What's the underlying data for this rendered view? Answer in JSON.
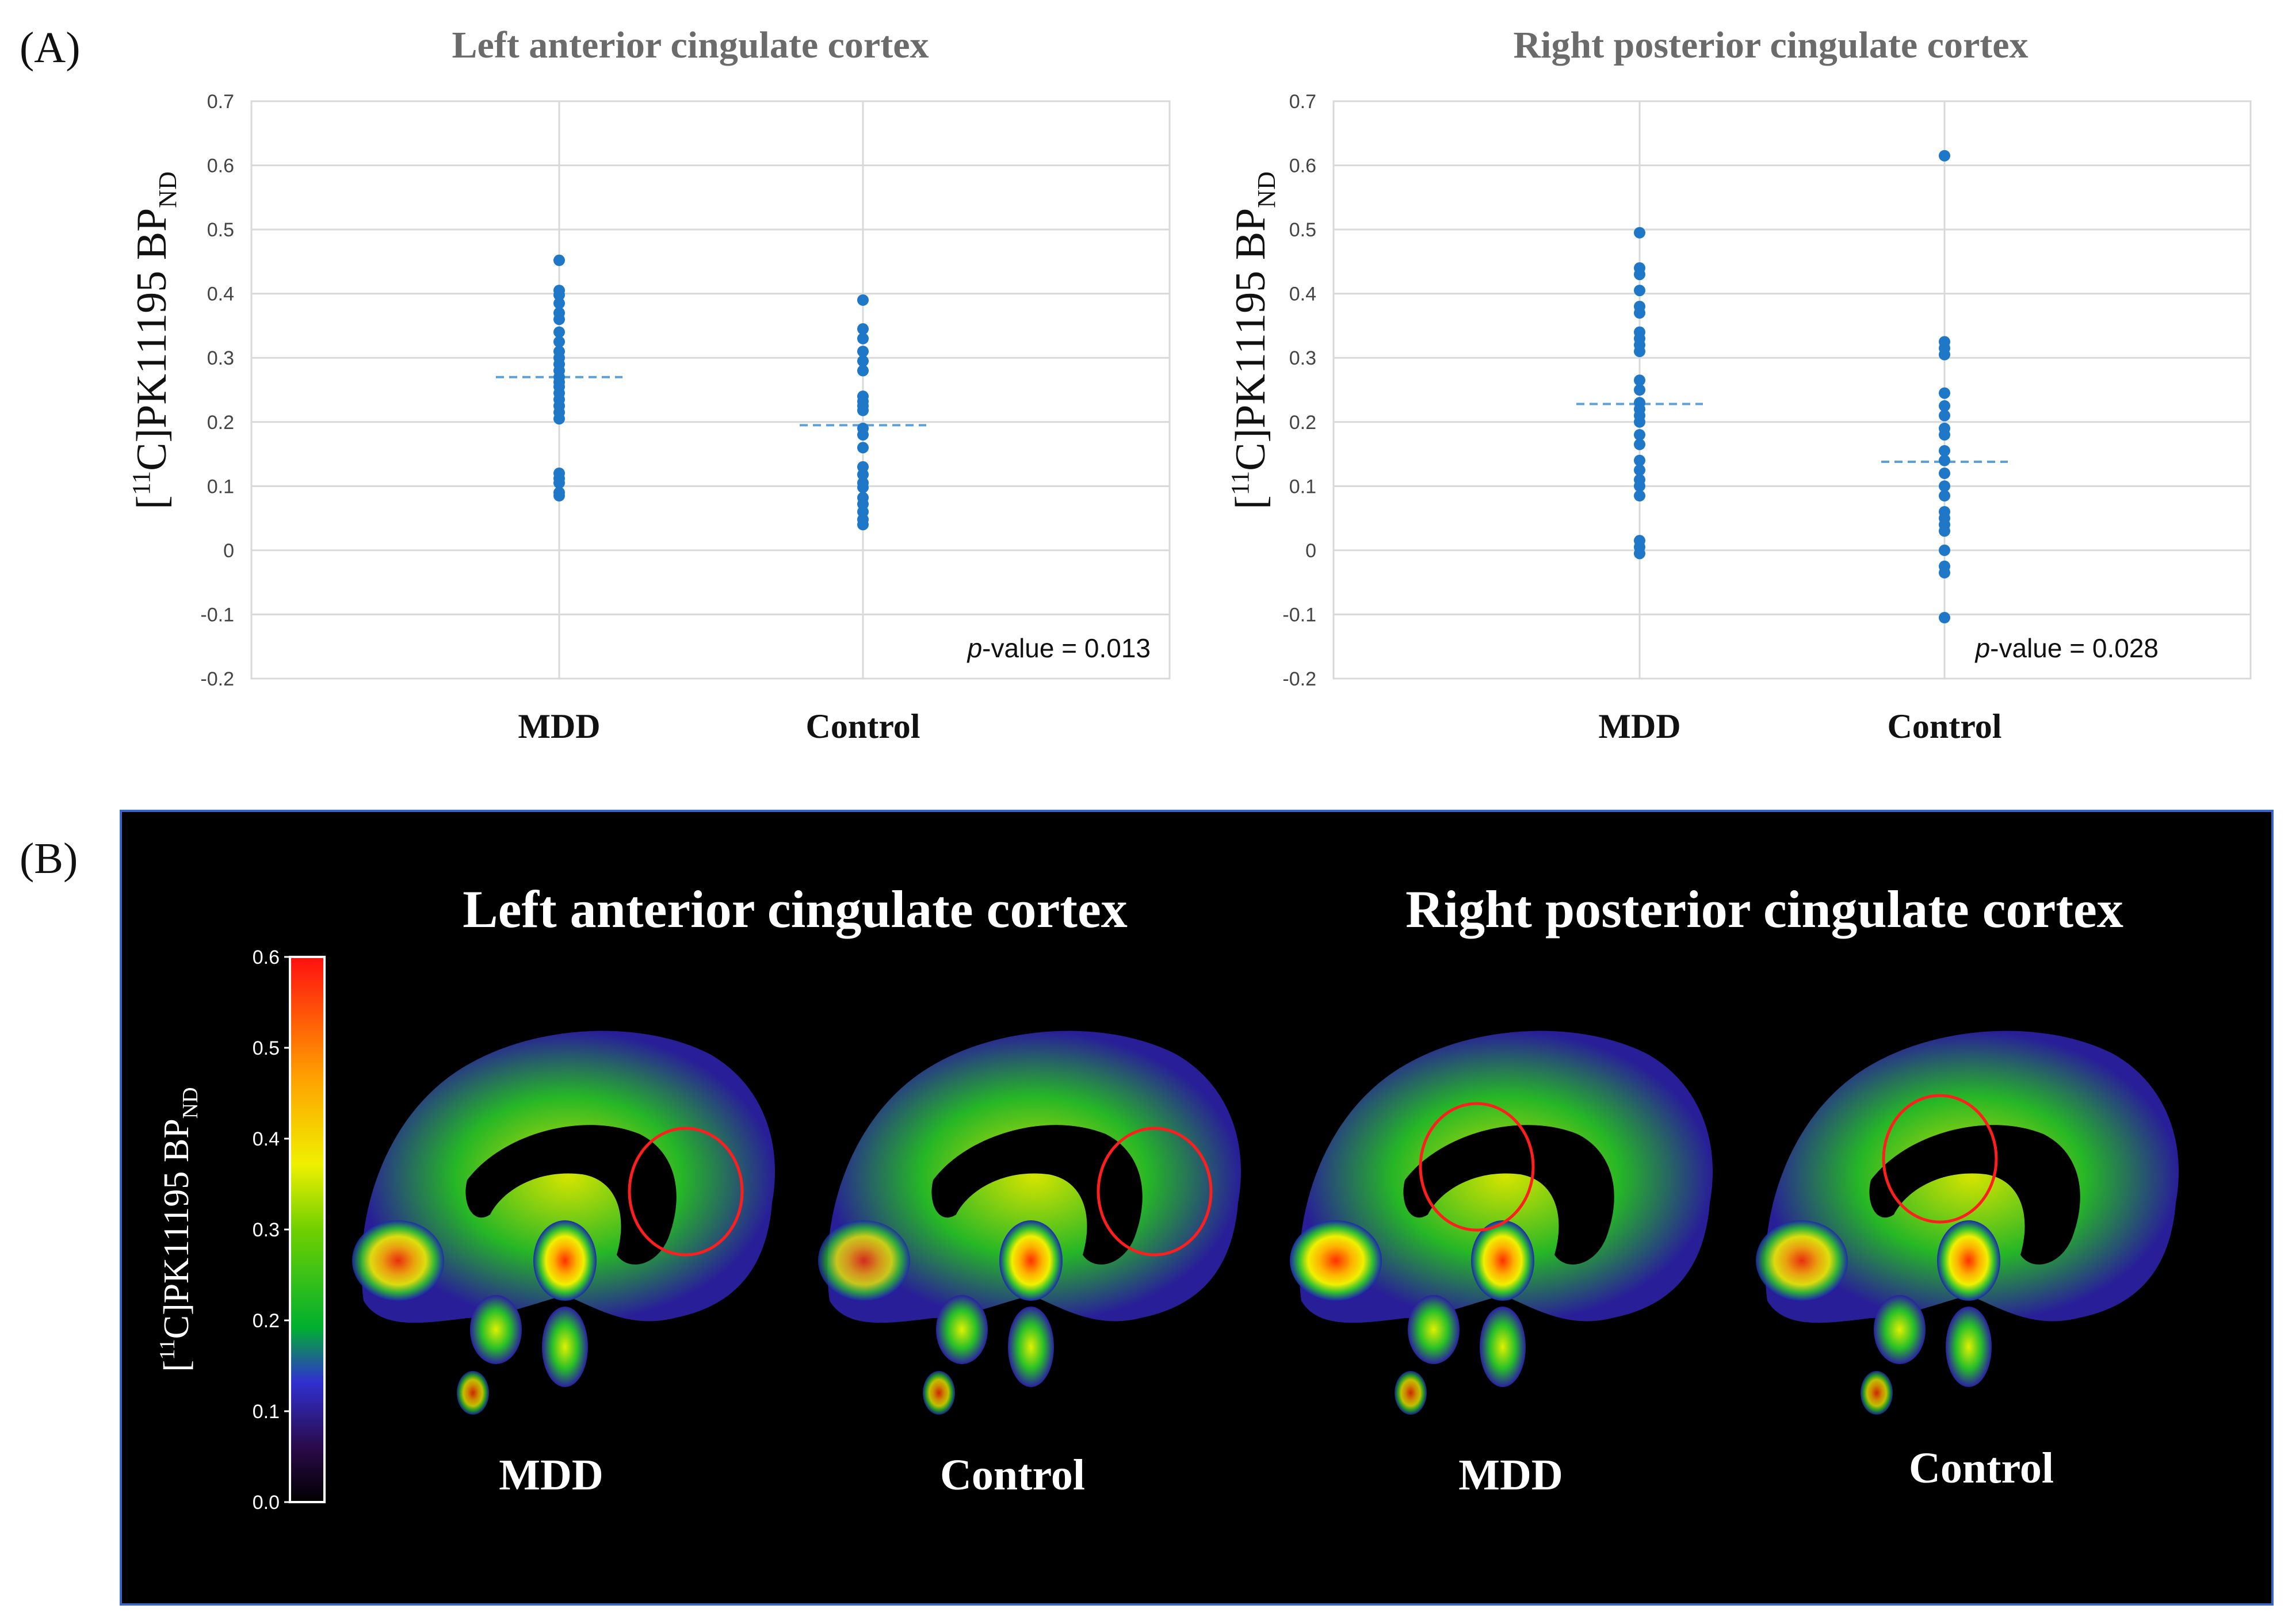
{
  "panel_a_label": "(A)",
  "panel_b_label": "(B)",
  "y_axis_label": {
    "main": "[",
    "sup": "11",
    "mid": "C]PK11195 BP",
    "sub": "ND"
  },
  "chart_data": [
    {
      "type": "scatter",
      "title": "Left anterior cingulate cortex",
      "categories": [
        "MDD",
        "Control"
      ],
      "ylim": [
        -0.2,
        0.7
      ],
      "yticks": [
        "0.7",
        "0.6",
        "0.5",
        "0.4",
        "0.3",
        "0.2",
        "0.1",
        "0",
        "-0.1",
        "-0.2"
      ],
      "grid": true,
      "annotation": {
        "italic": "p",
        "text": "-value  = 0.013"
      },
      "series": [
        {
          "category": "MDD",
          "mean": 0.27,
          "values": [
            0.452,
            0.405,
            0.398,
            0.385,
            0.37,
            0.36,
            0.34,
            0.325,
            0.31,
            0.3,
            0.29,
            0.28,
            0.27,
            0.262,
            0.255,
            0.245,
            0.235,
            0.225,
            0.215,
            0.205,
            0.12,
            0.112,
            0.105,
            0.09,
            0.085
          ]
        },
        {
          "category": "Control",
          "mean": 0.195,
          "values": [
            0.39,
            0.345,
            0.33,
            0.31,
            0.295,
            0.28,
            0.24,
            0.232,
            0.225,
            0.218,
            0.19,
            0.18,
            0.16,
            0.13,
            0.118,
            0.105,
            0.098,
            0.082,
            0.072,
            0.06,
            0.048,
            0.04
          ]
        }
      ],
      "point_color": "#1f77c8",
      "mean_line_color": "#5aa0dc"
    },
    {
      "type": "scatter",
      "title": "Right posterior cingulate cortex",
      "categories": [
        "MDD",
        "Control"
      ],
      "ylim": [
        -0.2,
        0.7
      ],
      "yticks": [
        "0.7",
        "0.6",
        "0.5",
        "0.4",
        "0.3",
        "0.2",
        "0.1",
        "0",
        "-0.1",
        "-0.2"
      ],
      "grid": true,
      "annotation": {
        "italic": "p",
        "text": "-value  = 0.028"
      },
      "series": [
        {
          "category": "MDD",
          "mean": 0.228,
          "values": [
            0.495,
            0.44,
            0.43,
            0.405,
            0.38,
            0.37,
            0.34,
            0.33,
            0.32,
            0.31,
            0.265,
            0.25,
            0.23,
            0.22,
            0.21,
            0.2,
            0.18,
            0.165,
            0.14,
            0.125,
            0.11,
            0.1,
            0.085,
            0.015,
            0.005,
            -0.005
          ]
        },
        {
          "category": "Control",
          "mean": 0.138,
          "values": [
            0.615,
            0.325,
            0.315,
            0.305,
            0.245,
            0.225,
            0.21,
            0.19,
            0.18,
            0.155,
            0.14,
            0.12,
            0.1,
            0.085,
            0.06,
            0.05,
            0.04,
            0.03,
            0.0,
            -0.025,
            -0.035,
            -0.105
          ]
        }
      ],
      "point_color": "#1f77c8",
      "mean_line_color": "#5aa0dc"
    }
  ],
  "imaging": {
    "titles": [
      "Left anterior cingulate cortex",
      "Right posterior cingulate cortex"
    ],
    "labels": [
      "MDD",
      "Control",
      "MDD",
      "Control"
    ],
    "colorbar": {
      "ticks": [
        "0.6",
        "0.5",
        "0.4",
        "0.3",
        "0.2",
        "0.1",
        "0.0"
      ],
      "range": [
        0.0,
        0.6
      ]
    },
    "roi_color": "#ff1e1e"
  }
}
